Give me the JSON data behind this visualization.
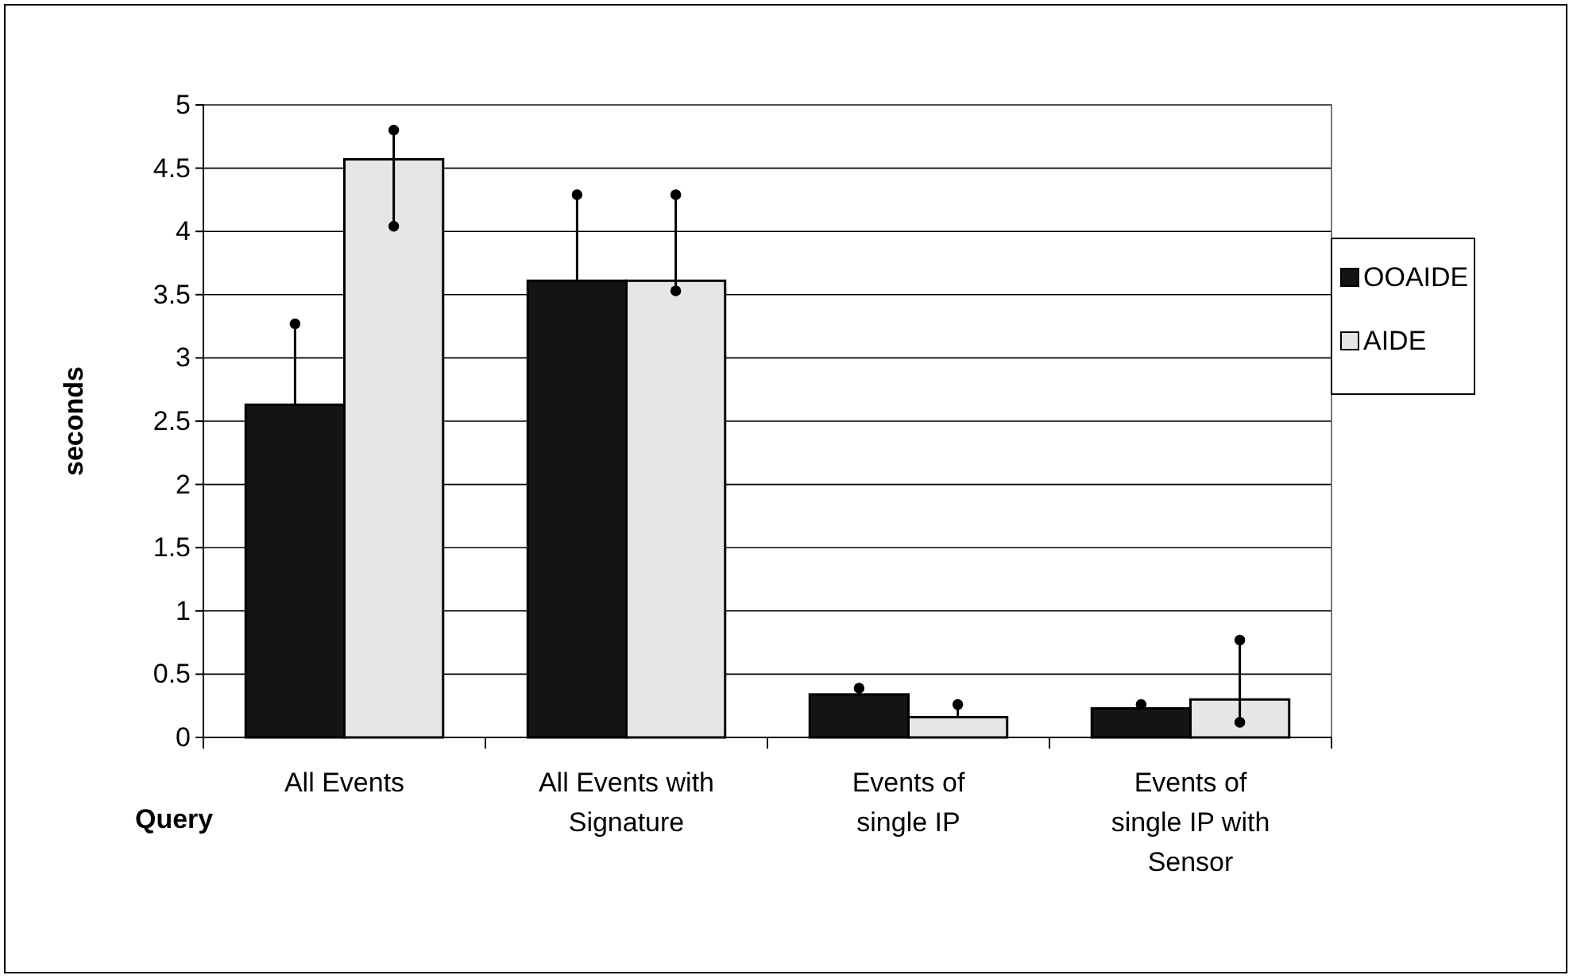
{
  "chart_data": {
    "type": "bar",
    "xlabel": "Query",
    "ylabel": "seconds",
    "categories": [
      "All Events",
      "All Events with Signature",
      "Events of single IP",
      "Events of single IP with Sensor"
    ],
    "series": [
      {
        "name": "OOAIDE",
        "color": "#141414",
        "values": [
          2.63,
          3.61,
          0.34,
          0.23
        ],
        "errors": [
          [
            2.63,
            3.27
          ],
          [
            3.61,
            4.29
          ],
          [
            0.34,
            0.39
          ],
          [
            0.23,
            0.26
          ]
        ]
      },
      {
        "name": "AIDE",
        "color": "#e6e6e6",
        "values": [
          4.57,
          3.61,
          0.16,
          0.3
        ],
        "errors": [
          [
            4.04,
            4.8
          ],
          [
            3.53,
            4.29
          ],
          [
            0.16,
            0.26
          ],
          [
            0.12,
            0.77
          ]
        ]
      }
    ],
    "ylim": [
      0,
      5
    ],
    "yticks": [
      0,
      0.5,
      1,
      1.5,
      2,
      2.5,
      3,
      3.5,
      4,
      4.5,
      5
    ],
    "grid": "y",
    "legend": "right"
  }
}
